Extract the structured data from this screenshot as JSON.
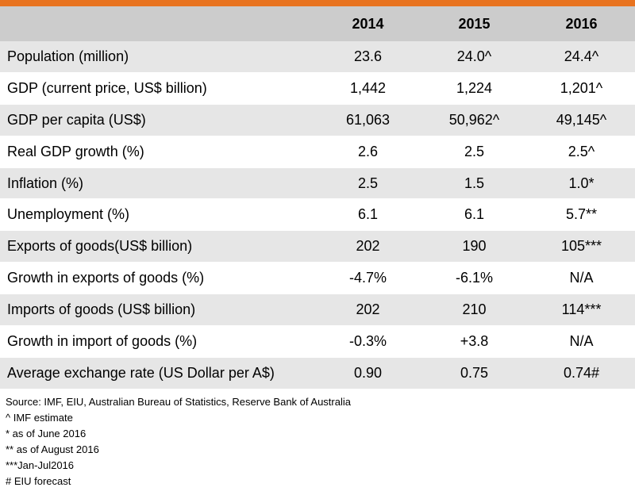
{
  "accent_color": "#e8731f",
  "header_color": "#cccccc",
  "shade_color": "#e6e6e6",
  "table": {
    "columns": [
      "",
      "2014",
      "2015",
      "2016"
    ],
    "rows": [
      {
        "label": "Population (million)",
        "values": [
          "23.6",
          "24.0^",
          "24.4^"
        ]
      },
      {
        "label": "GDP (current price, US$ billion)",
        "values": [
          "1,442",
          "1,224",
          "1,201^"
        ]
      },
      {
        "label": "GDP per capita (US$)",
        "values": [
          "61,063",
          "50,962^",
          "49,145^"
        ]
      },
      {
        "label": "Real GDP growth (%)",
        "values": [
          "2.6",
          "2.5",
          "2.5^"
        ]
      },
      {
        "label": "Inflation (%)",
        "values": [
          "2.5",
          "1.5",
          "1.0*"
        ]
      },
      {
        "label": "Unemployment (%)",
        "values": [
          "6.1",
          "6.1",
          "5.7**"
        ]
      },
      {
        "label": "Exports of goods(US$ billion)",
        "values": [
          "202",
          "190",
          "105***"
        ]
      },
      {
        "label": "Growth in exports of goods (%)",
        "values": [
          "-4.7%",
          "-6.1%",
          "N/A"
        ]
      },
      {
        "label": "Imports of goods  (US$ billion)",
        "values": [
          "202",
          "210",
          "114***"
        ]
      },
      {
        "label": "Growth in import of goods (%)",
        "values": [
          "-0.3%",
          "+3.8",
          "N/A"
        ]
      },
      {
        "label": "Average exchange rate (US Dollar per A$)",
        "values": [
          "0.90",
          "0.75",
          "0.74#"
        ]
      }
    ]
  },
  "notes": {
    "source": "Source: IMF, EIU, Australian Bureau of Statistics, Reserve Bank of Australia",
    "items": [
      "^ IMF estimate",
      "* as of June 2016",
      "** as of August 2016",
      "***Jan-Jul2016",
      "# EIU forecast"
    ]
  }
}
